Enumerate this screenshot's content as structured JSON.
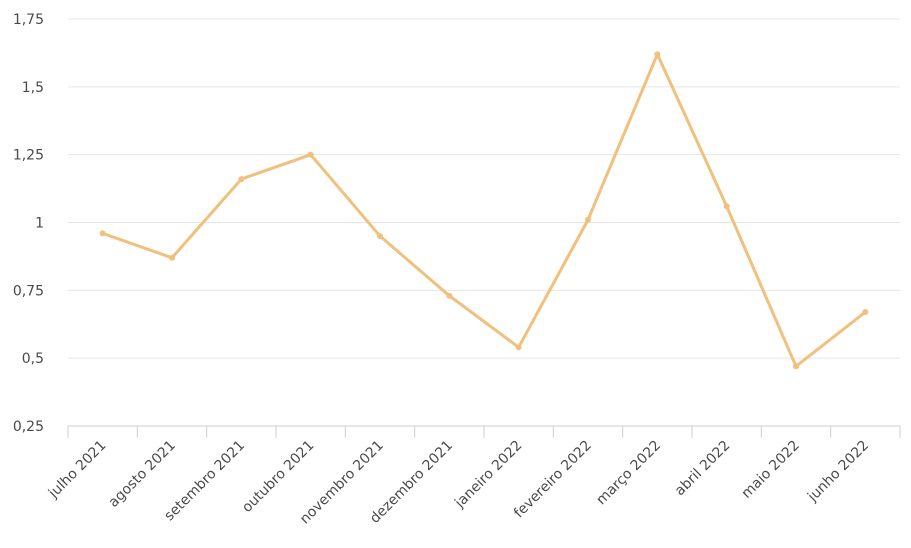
{
  "colors": {
    "series": "#f0c07c",
    "grid": "#e6e6e6",
    "axis": "#cfcfcf",
    "text": "#4a4a4a"
  },
  "chart_data": {
    "type": "line",
    "title": "",
    "xlabel": "",
    "ylabel": "",
    "categories": [
      "julho 2021",
      "agosto 2021",
      "setembro 2021",
      "outubro 2021",
      "novembro 2021",
      "dezembro 2021",
      "janeiro 2022",
      "fevereiro 2022",
      "março 2022",
      "abril 2022",
      "maio 2022",
      "junho 2022"
    ],
    "series": [
      {
        "values": [
          0.96,
          0.87,
          1.16,
          1.25,
          0.95,
          0.73,
          0.54,
          1.01,
          1.62,
          1.06,
          0.47,
          0.67
        ]
      }
    ],
    "ylim": [
      0.25,
      1.75
    ],
    "yticks": [
      0.25,
      0.5,
      0.75,
      1,
      1.25,
      1.5,
      1.75
    ],
    "ytick_labels": [
      "0,25",
      "0,5",
      "0,75",
      "1",
      "1,25",
      "1,5",
      "1,75"
    ],
    "grid": true,
    "legend": "none"
  }
}
